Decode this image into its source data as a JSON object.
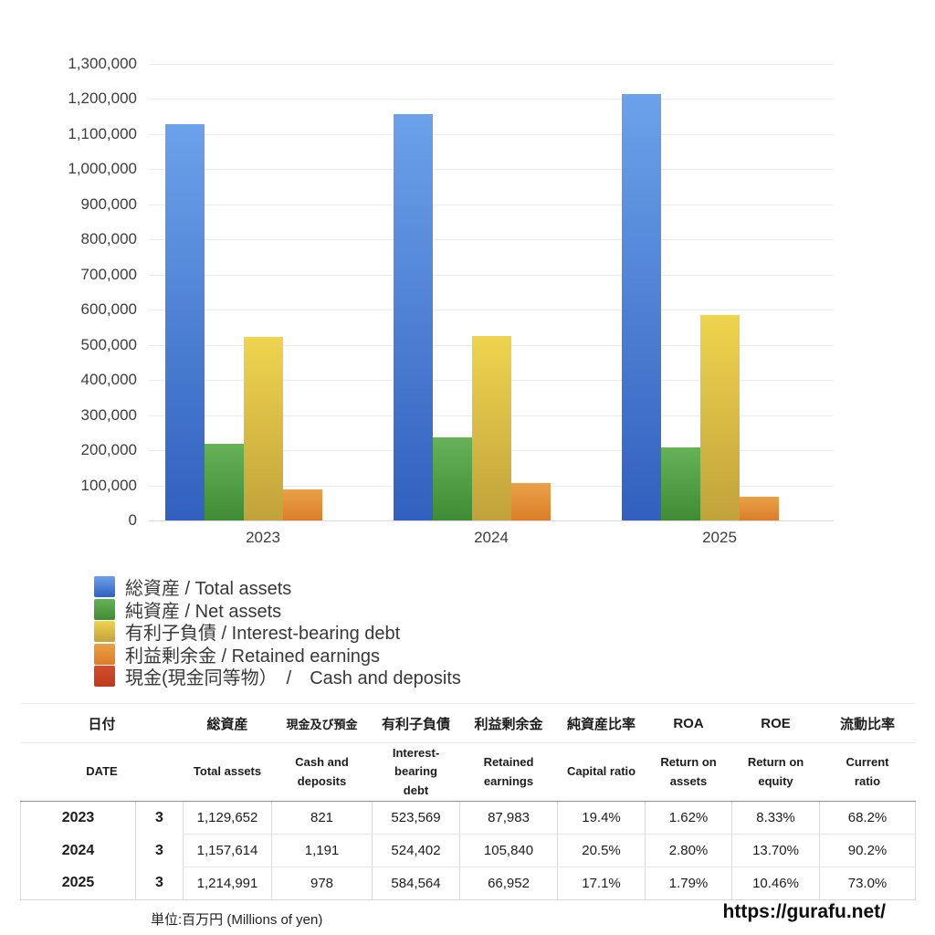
{
  "chart_data": {
    "type": "bar",
    "categories": [
      "2023",
      "2024",
      "2025"
    ],
    "series": [
      {
        "name": "総資産 / Total assets",
        "color": {
          "top": "#6BA2EA",
          "bottom": "#3160BF"
        },
        "values": [
          1129652,
          1157614,
          1214991
        ]
      },
      {
        "name": "純資産 / Net assets",
        "color": {
          "top": "#67B257",
          "bottom": "#3F8C36"
        },
        "values": [
          219153,
          237311,
          207763
        ]
      },
      {
        "name": "有利子負債 / Interest-bearing debt",
        "color": {
          "top": "#EFD44E",
          "bottom": "#C2A23B"
        },
        "values": [
          523569,
          524402,
          584564
        ]
      },
      {
        "name": "利益剰余金 / Retained earnings",
        "color": {
          "top": "#E9A148",
          "bottom": "#DB7E28"
        },
        "values": [
          87983,
          105840,
          66952
        ]
      },
      {
        "name": "現金(現金同等物）　/　Cash and deposits",
        "color": {
          "top": "#D54D2B",
          "bottom": "#BE3A1E"
        },
        "values": [
          821,
          1191,
          978
        ]
      }
    ],
    "title": "",
    "xlabel": "",
    "ylabel": "",
    "ylim": [
      0,
      1300000
    ],
    "ytick_step": 100000,
    "grid": true,
    "legend_position": "bottom-left"
  },
  "table": {
    "header_jp": [
      "日付",
      "総資産",
      "現金及び預金",
      "有利子負債",
      "利益剰余金",
      "純資産比率",
      "ROA",
      "ROE",
      "流動比率"
    ],
    "header_en": [
      "DATE",
      "Total assets",
      "Cash and\ndeposits",
      "Interest-\nbearing\ndebt",
      "Retained\nearnings",
      "Capital ratio",
      "Return on\nassets",
      "Return on\nequity",
      "Current\nratio"
    ],
    "rows": [
      {
        "year": "2023",
        "month": "3",
        "total_assets": "1,129,652",
        "cash": "821",
        "debt": "523,569",
        "retained": "87,983",
        "capital_ratio": "19.4%",
        "roa": "1.62%",
        "roe": "8.33%",
        "current_ratio": "68.2%"
      },
      {
        "year": "2024",
        "month": "3",
        "total_assets": "1,157,614",
        "cash": "1,191",
        "debt": "524,402",
        "retained": "105,840",
        "capital_ratio": "20.5%",
        "roa": "2.80%",
        "roe": "13.70%",
        "current_ratio": "90.2%"
      },
      {
        "year": "2025",
        "month": "3",
        "total_assets": "1,214,991",
        "cash": "978",
        "debt": "584,564",
        "retained": "66,952",
        "capital_ratio": "17.1%",
        "roa": "1.79%",
        "roe": "10.46%",
        "current_ratio": "73.0%"
      }
    ]
  },
  "footer": {
    "unit_note": "単位:百万円 (Millions of yen)",
    "site_url": "https://gurafu.net/"
  }
}
